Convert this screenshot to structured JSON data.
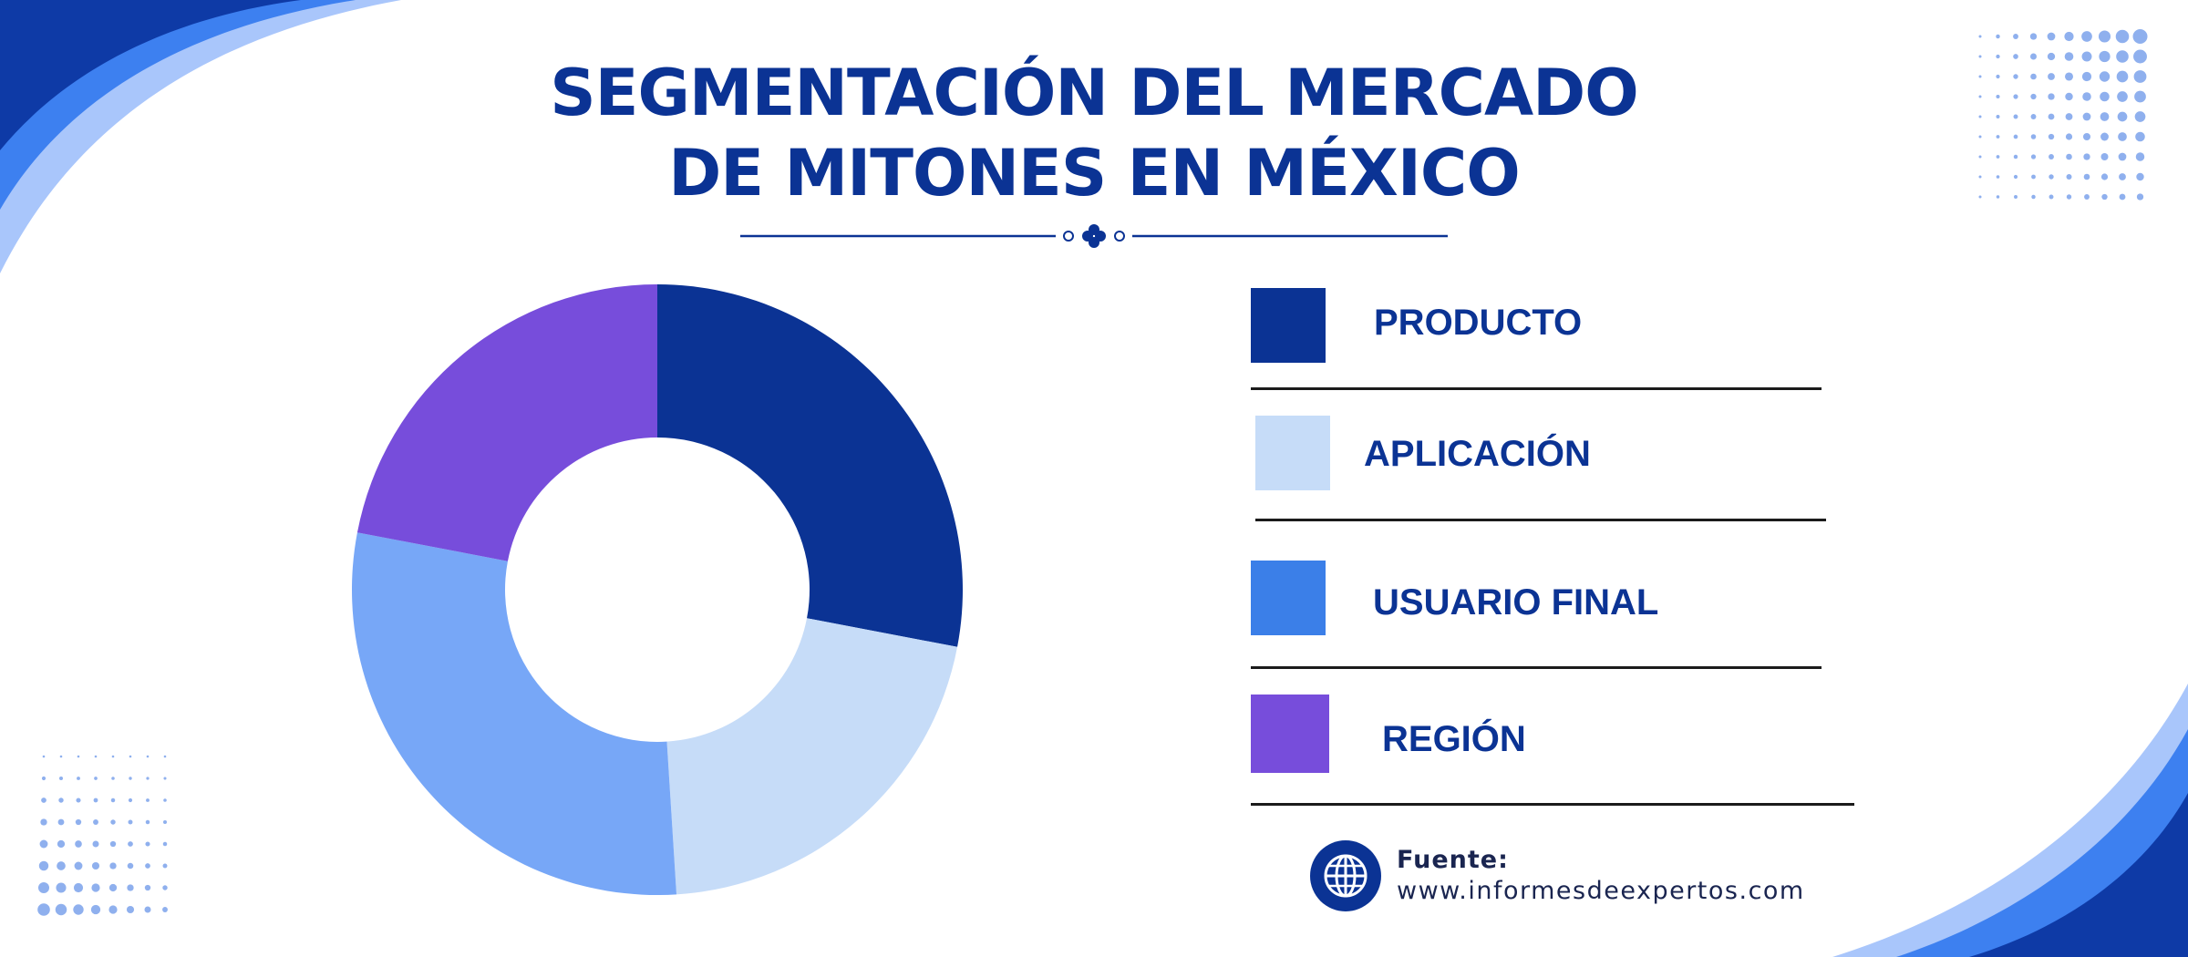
{
  "title": {
    "line1": "SEGMENTACIÓN DEL MERCADO",
    "line2": "DE MITONES EN MÉXICO"
  },
  "colors": {
    "navy": "#0b3394",
    "light_blue": "#c6dcf8",
    "medium_blue": "#3b7fe8",
    "sky_blue": "#77a7f7",
    "purple": "#774ddb"
  },
  "chart_data": {
    "type": "pie",
    "style": "donut",
    "categories": [
      "PRODUCTO",
      "APLICACIÓN",
      "USUARIO FINAL",
      "REGIÓN"
    ],
    "values": [
      28,
      21,
      29,
      22
    ],
    "slice_colors": [
      "#0b3394",
      "#c6dcf8",
      "#77a7f7",
      "#774ddb"
    ],
    "legend": [
      {
        "label": "PRODUCTO",
        "color": "#0b3394"
      },
      {
        "label": "APLICACIÓN",
        "color": "#c6dcf8"
      },
      {
        "label": "USUARIO FINAL",
        "color": "#3b7fe8"
      },
      {
        "label": "REGIÓN",
        "color": "#774ddb"
      }
    ],
    "legend_position": "right"
  },
  "source": {
    "label": "Fuente:",
    "url": "www.informesdeexpertos.com",
    "icon": "globe-icon"
  }
}
